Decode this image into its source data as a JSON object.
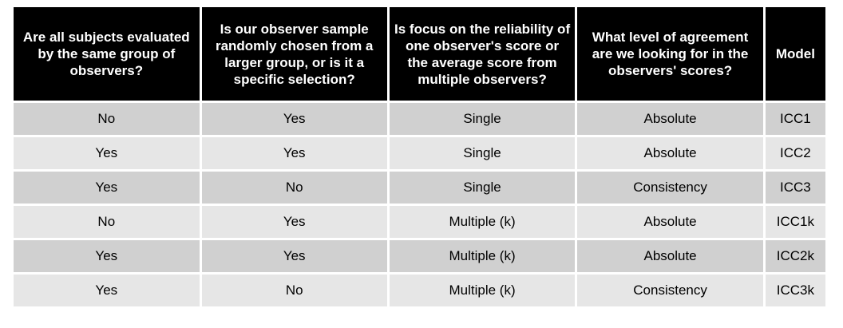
{
  "table": {
    "headers": [
      "Are all subjects evaluated by the same group of observers?",
      "Is our observer sample randomly chosen from a larger group, or is it a specific selection?",
      "Is focus on the reliability of one observer's score or the average score from multiple observers?",
      "What level of agreement are we looking for in the observers' scores?",
      "Model"
    ],
    "rows": [
      [
        "No",
        "Yes",
        "Single",
        "Absolute",
        "ICC1"
      ],
      [
        "Yes",
        "Yes",
        "Single",
        "Absolute",
        "ICC2"
      ],
      [
        "Yes",
        "No",
        "Single",
        "Consistency",
        "ICC3"
      ],
      [
        "No",
        "Yes",
        "Multiple (k)",
        "Absolute",
        "ICC1k"
      ],
      [
        "Yes",
        "Yes",
        "Multiple (k)",
        "Absolute",
        "ICC2k"
      ],
      [
        "Yes",
        "No",
        "Multiple (k)",
        "Consistency",
        "ICC3k"
      ]
    ]
  },
  "colors": {
    "header_bg": "#000000",
    "header_text": "#ffffff",
    "row_dark": "#d0d0d0",
    "row_light": "#e6e6e6"
  }
}
